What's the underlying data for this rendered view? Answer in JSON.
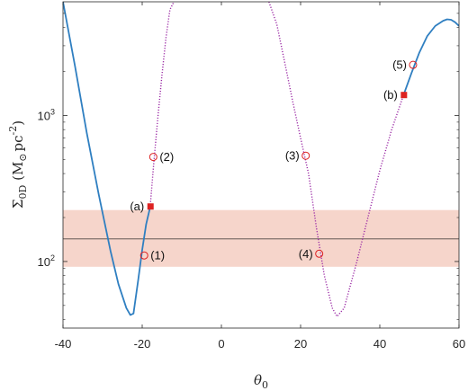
{
  "chart_data": {
    "type": "line",
    "xlabel": {
      "symbol": "θ",
      "sub": "0"
    },
    "ylabel": {
      "symbol": "Σ",
      "sub": "0D",
      "unit_open": " (M",
      "unit_odot": "⊙",
      "unit_mid": "pc",
      "unit_exp": "-2",
      "unit_close": ")"
    },
    "xlim": [
      -40,
      60
    ],
    "ylim": [
      35,
      6000
    ],
    "yscale": "log",
    "grid": false,
    "x_ticks": [
      -40,
      -20,
      0,
      20,
      40,
      60
    ],
    "y_ticks": [
      {
        "value": 100,
        "base": "10",
        "exp": "2"
      },
      {
        "value": 1000,
        "base": "10",
        "exp": "3"
      }
    ],
    "band": {
      "y_low": 92,
      "y_high": 225,
      "color": "#f6d5cb"
    },
    "hline": {
      "y": 143,
      "color": "#8c7a74"
    },
    "series": [
      {
        "style": "solid",
        "color": "#2f7fc1",
        "x": [
          -40,
          -37,
          -34,
          -31,
          -28,
          -26,
          -24,
          -23,
          -22.2,
          -21,
          -20,
          -19,
          -18
        ],
        "y": [
          6000,
          2200,
          760,
          290,
          118,
          70,
          48,
          43,
          44,
          75,
          120,
          180,
          235
        ]
      },
      {
        "style": "dotted",
        "color": "#9b2aa5",
        "x": [
          -18,
          -17,
          -16,
          -15,
          -14,
          -13,
          -12
        ],
        "y": [
          235,
          500,
          1000,
          1900,
          3400,
          5300,
          6000
        ]
      },
      {
        "style": "dotted",
        "color": "#9b2aa5",
        "x": [
          12,
          14,
          16,
          18,
          20,
          22,
          24,
          26,
          28,
          29.2,
          31,
          34,
          37,
          40,
          43,
          46
        ],
        "y": [
          6000,
          4200,
          2300,
          1250,
          700,
          400,
          170,
          80,
          48,
          42,
          48,
          95,
          200,
          420,
          800,
          1380
        ]
      },
      {
        "style": "solid",
        "color": "#2f7fc1",
        "x": [
          46,
          48,
          50,
          52,
          54,
          56,
          57,
          58,
          59,
          60
        ],
        "y": [
          1380,
          1950,
          2700,
          3500,
          4100,
          4450,
          4550,
          4520,
          4350,
          4100
        ]
      }
    ],
    "markers": [
      {
        "label": "(1)",
        "x": -19.5,
        "y": 110,
        "shape": "open-circle",
        "label_pos": "right"
      },
      {
        "label": "(2)",
        "x": -17.2,
        "y": 520,
        "shape": "open-circle",
        "label_pos": "right"
      },
      {
        "label": "(3)",
        "x": 21.3,
        "y": 530,
        "shape": "open-circle",
        "label_pos": "left"
      },
      {
        "label": "(4)",
        "x": 24.7,
        "y": 113,
        "shape": "open-circle",
        "label_pos": "left"
      },
      {
        "label": "(5)",
        "x": 48.4,
        "y": 2220,
        "shape": "open-circle",
        "label_pos": "left"
      },
      {
        "label": "(a)",
        "x": -17.9,
        "y": 238,
        "shape": "filled-square",
        "label_pos": "left"
      },
      {
        "label": "(b)",
        "x": 46.1,
        "y": 1380,
        "shape": "filled-square",
        "label_pos": "left"
      }
    ],
    "marker_color": "#dd2222"
  }
}
